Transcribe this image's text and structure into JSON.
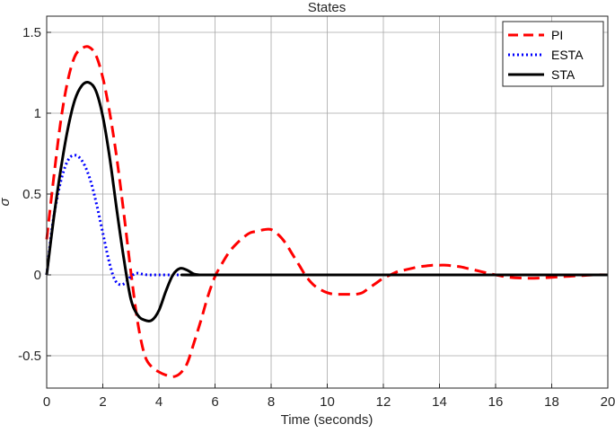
{
  "chart_data": {
    "type": "line",
    "title": "States",
    "xlabel": "Time (seconds)",
    "ylabel": "σ",
    "xlim": [
      0,
      20
    ],
    "ylim": [
      -0.7,
      1.6
    ],
    "xticks": [
      0,
      2,
      4,
      6,
      8,
      10,
      12,
      14,
      16,
      18,
      20
    ],
    "xtick_labels": [
      "0",
      "2",
      "4",
      "6",
      "8",
      "10",
      "12",
      "14",
      "16",
      "18",
      "20"
    ],
    "yticks": [
      -0.5,
      0,
      0.5,
      1,
      1.5
    ],
    "ytick_labels": [
      "-0.5",
      "0",
      "0.5",
      "1",
      "1.5"
    ],
    "grid": true,
    "legend_position": "top-right",
    "series": [
      {
        "name": "PI",
        "color": "#ff0000",
        "style": "dashed",
        "x": [
          0,
          0.25,
          0.5,
          0.75,
          1.0,
          1.25,
          1.5,
          1.75,
          2.0,
          2.25,
          2.5,
          2.75,
          3.0,
          3.25,
          3.5,
          3.75,
          4.0,
          4.25,
          4.5,
          4.75,
          5.0,
          5.25,
          5.5,
          5.75,
          6.0,
          6.25,
          6.5,
          6.75,
          7.0,
          7.25,
          7.5,
          7.75,
          8.0,
          8.25,
          8.5,
          8.75,
          9.0,
          9.25,
          9.5,
          9.75,
          10.0,
          10.25,
          10.5,
          10.75,
          11.0,
          11.25,
          11.5,
          11.75,
          12.0,
          12.25,
          12.5,
          12.75,
          13.0,
          13.25,
          13.5,
          13.75,
          14.0,
          14.25,
          14.5,
          14.75,
          15.0,
          15.25,
          15.5,
          15.75,
          16.0,
          16.5,
          17.0,
          17.5,
          18.0,
          18.5,
          19.0,
          19.5,
          20.0
        ],
        "y": [
          0.22,
          0.6,
          0.95,
          1.2,
          1.35,
          1.4,
          1.41,
          1.36,
          1.22,
          1.0,
          0.72,
          0.38,
          0.02,
          -0.3,
          -0.5,
          -0.57,
          -0.6,
          -0.62,
          -0.63,
          -0.61,
          -0.55,
          -0.42,
          -0.28,
          -0.13,
          -0.01,
          0.07,
          0.14,
          0.19,
          0.23,
          0.26,
          0.27,
          0.28,
          0.28,
          0.25,
          0.2,
          0.13,
          0.06,
          -0.01,
          -0.06,
          -0.09,
          -0.11,
          -0.12,
          -0.12,
          -0.12,
          -0.12,
          -0.11,
          -0.08,
          -0.05,
          -0.02,
          0.0,
          0.02,
          0.03,
          0.04,
          0.05,
          0.055,
          0.06,
          0.06,
          0.06,
          0.055,
          0.05,
          0.04,
          0.03,
          0.02,
          0.01,
          0.0,
          -0.015,
          -0.02,
          -0.02,
          -0.015,
          -0.01,
          -0.005,
          0.0,
          0.0
        ]
      },
      {
        "name": "ESTA",
        "color": "#0000ff",
        "style": "dotted",
        "x": [
          0,
          0.2,
          0.4,
          0.6,
          0.8,
          1.0,
          1.2,
          1.4,
          1.6,
          1.8,
          2.0,
          2.2,
          2.4,
          2.6,
          2.8,
          3.0,
          3.2,
          3.4,
          3.6,
          3.8,
          4.0,
          5.0,
          5.5
        ],
        "y": [
          0.0,
          0.3,
          0.5,
          0.64,
          0.72,
          0.74,
          0.72,
          0.66,
          0.56,
          0.42,
          0.26,
          0.1,
          -0.02,
          -0.06,
          -0.05,
          -0.01,
          0.01,
          0.005,
          0.0,
          0.0,
          0.0,
          0.0,
          0.0
        ]
      },
      {
        "name": "STA",
        "color": "#000000",
        "style": "solid",
        "x": [
          0,
          0.25,
          0.5,
          0.75,
          1.0,
          1.25,
          1.5,
          1.75,
          2.0,
          2.25,
          2.5,
          2.75,
          3.0,
          3.25,
          3.5,
          3.75,
          4.0,
          4.25,
          4.5,
          4.75,
          5.0,
          5.25,
          5.5,
          6.0,
          20.0
        ],
        "y": [
          0.0,
          0.35,
          0.65,
          0.9,
          1.08,
          1.17,
          1.19,
          1.14,
          0.98,
          0.72,
          0.4,
          0.1,
          -0.15,
          -0.25,
          -0.28,
          -0.28,
          -0.22,
          -0.1,
          0.0,
          0.04,
          0.03,
          0.005,
          0.0,
          0.0,
          0.0
        ]
      }
    ]
  }
}
